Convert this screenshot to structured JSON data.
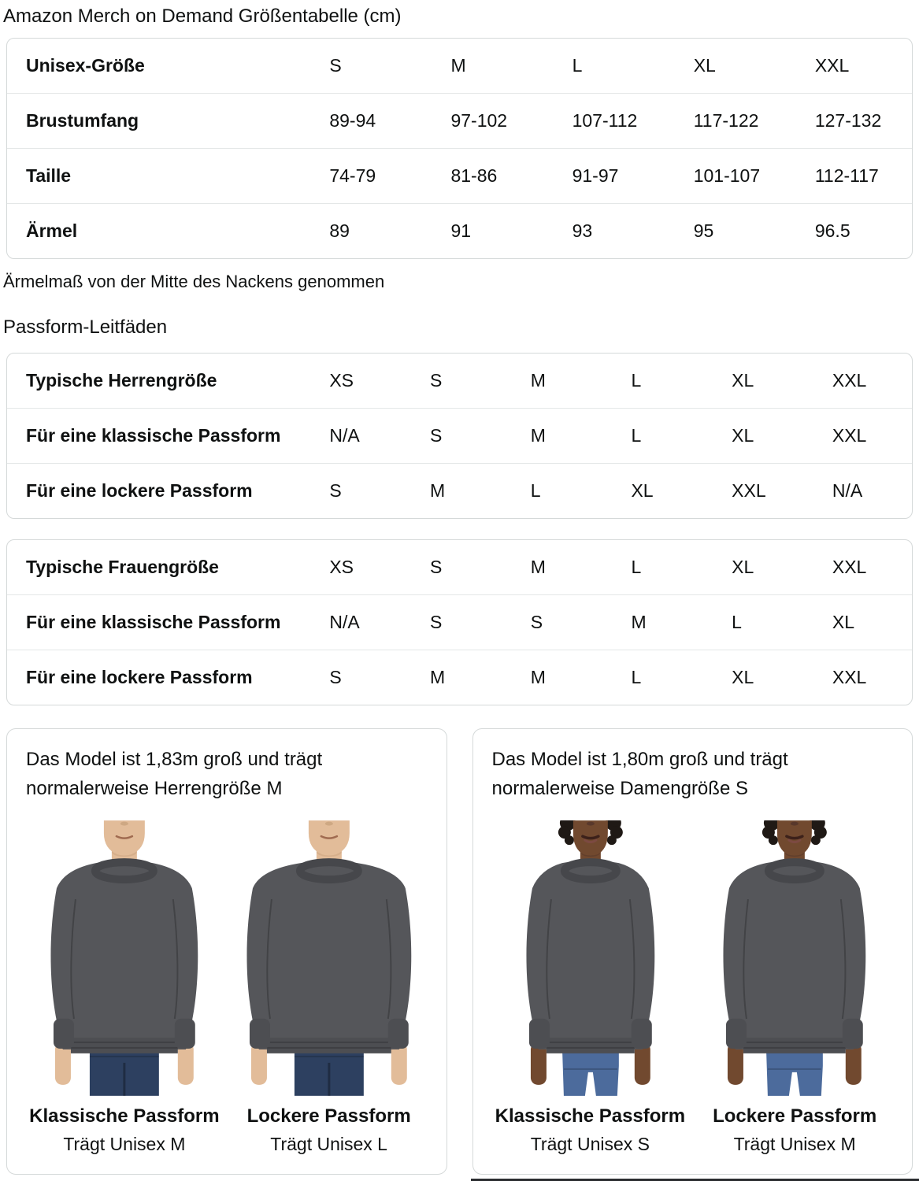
{
  "page": {
    "title": "Amazon Merch on Demand Größentabelle (cm)",
    "sleeve_note": "Ärmelmaß von der Mitte des Nackens genommen",
    "fit_guides_title": "Passform-Leitfäden"
  },
  "size_table": {
    "header": {
      "label": "Unisex-Größe",
      "sizes": [
        "S",
        "M",
        "L",
        "XL",
        "XXL"
      ]
    },
    "rows": [
      {
        "label": "Brustumfang",
        "values": [
          "89-94",
          "97-102",
          "107-112",
          "117-122",
          "127-132"
        ]
      },
      {
        "label": "Taille",
        "values": [
          "74-79",
          "81-86",
          "91-97",
          "101-107",
          "112-117"
        ]
      },
      {
        "label": "Ärmel",
        "values": [
          "89",
          "91",
          "93",
          "95",
          "96.5"
        ]
      }
    ]
  },
  "fit_tables": [
    {
      "name": "men",
      "rows": [
        {
          "label": "Typische Herrengröße",
          "values": [
            "XS",
            "S",
            "M",
            "L",
            "XL",
            "XXL"
          ]
        },
        {
          "label": "Für eine klassische Passform",
          "values": [
            "N/A",
            "S",
            "M",
            "L",
            "XL",
            "XXL"
          ]
        },
        {
          "label": "Für eine lockere Passform",
          "values": [
            "S",
            "M",
            "L",
            "XL",
            "XXL",
            "N/A"
          ]
        }
      ]
    },
    {
      "name": "women",
      "rows": [
        {
          "label": "Typische Frauengröße",
          "values": [
            "XS",
            "S",
            "M",
            "L",
            "XL",
            "XXL"
          ]
        },
        {
          "label": "Für eine klassische Passform",
          "values": [
            "N/A",
            "S",
            "S",
            "M",
            "L",
            "XL"
          ]
        },
        {
          "label": "Für eine lockere Passform",
          "values": [
            "S",
            "M",
            "M",
            "L",
            "XL",
            "XXL"
          ]
        }
      ]
    }
  ],
  "cards": [
    {
      "heading": "Das Model ist 1,83m groß und trägt normalerweise Herrengröße M",
      "figures": [
        {
          "image": "male-model-classic-fit-photo",
          "fit_label": "Klassische Passform",
          "size_label": "Trägt Unisex M"
        },
        {
          "image": "male-model-loose-fit-photo",
          "fit_label": "Lockere Passform",
          "size_label": "Trägt Unisex L"
        }
      ]
    },
    {
      "heading": "Das Model ist 1,80m groß und trägt normalerweise Damengröße S",
      "figures": [
        {
          "image": "female-model-classic-fit-photo",
          "fit_label": "Klassische Passform",
          "size_label": "Trägt Unisex S"
        },
        {
          "image": "female-model-loose-fit-photo",
          "fit_label": "Lockere Passform",
          "size_label": "Trägt Unisex M"
        }
      ]
    }
  ],
  "colors": {
    "text": "#0f1111",
    "table_border": "#d5d9d9",
    "row_divider": "#e4e7e7",
    "bottom_bar": "#2b2d30",
    "sweatshirt": "#55565a",
    "sweatshirt_mid": "#4d4e52",
    "sweatshirt_dark": "#46474b",
    "skin_male": "#e2bc99",
    "skin_male_shadow": "#c9a27d",
    "skin_female": "#71492f",
    "skin_female_shadow": "#53352a",
    "hair_female": "#1f1915",
    "jeans_male": "#2d4060",
    "jeans_female": "#4c6b9c"
  }
}
